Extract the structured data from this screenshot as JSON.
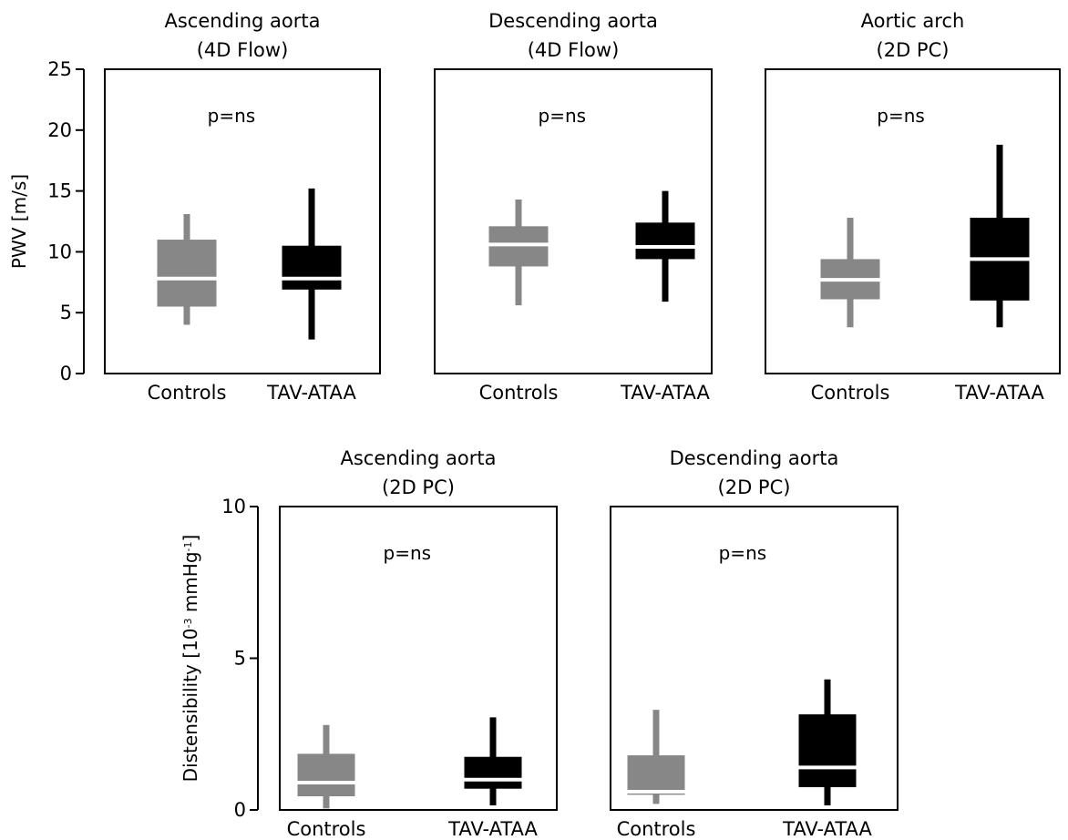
{
  "chart_data": [
    {
      "type": "box",
      "title": [
        "Ascending aorta",
        "(4D Flow)"
      ],
      "ylabel": "PWV [m/s]",
      "ylim": [
        0,
        25
      ],
      "yticks": [
        0,
        5,
        10,
        15,
        20,
        25
      ],
      "categories": [
        "Controls",
        "TAV-ATAA"
      ],
      "annotation": "p=ns",
      "colors": [
        "#878787",
        "#000000"
      ],
      "boxes": [
        {
          "min": 4.0,
          "q1": 5.5,
          "median": 7.8,
          "q3": 11.0,
          "max": 13.1
        },
        {
          "min": 2.8,
          "q1": 6.9,
          "median": 7.8,
          "q3": 10.5,
          "max": 15.2
        }
      ]
    },
    {
      "type": "box",
      "title": [
        "Descending aorta",
        "(4D Flow)"
      ],
      "ylabel": "",
      "ylim": [
        0,
        25
      ],
      "categories": [
        "Controls",
        "TAV-ATAA"
      ],
      "annotation": "p=ns",
      "colors": [
        "#878787",
        "#000000"
      ],
      "boxes": [
        {
          "min": 5.6,
          "q1": 8.8,
          "median": 10.6,
          "q3": 12.1,
          "max": 14.3
        },
        {
          "min": 5.9,
          "q1": 9.4,
          "median": 10.4,
          "q3": 12.4,
          "max": 15.0
        }
      ]
    },
    {
      "type": "box",
      "title": [
        "Aortic arch",
        "(2D PC)"
      ],
      "ylabel": "",
      "ylim": [
        0,
        25
      ],
      "categories": [
        "Controls",
        "TAV-ATAA"
      ],
      "annotation": "p=ns",
      "colors": [
        "#878787",
        "#000000"
      ],
      "boxes": [
        {
          "min": 3.8,
          "q1": 6.1,
          "median": 7.7,
          "q3": 9.4,
          "max": 12.8
        },
        {
          "min": 3.8,
          "q1": 6.0,
          "median": 9.4,
          "q3": 12.8,
          "max": 18.8
        }
      ]
    },
    {
      "type": "box",
      "title": [
        "Ascending aorta",
        "(2D PC)"
      ],
      "ylabel": "Distensibility [10",
      "ylabel_sup": "-3",
      "ylabel_mid": " mmHg",
      "ylabel_sup2": "-1",
      "ylabel_end": "]",
      "ylim": [
        0,
        10
      ],
      "yticks": [
        0,
        5,
        10
      ],
      "categories": [
        "Controls",
        "TAV-ATAA"
      ],
      "annotation": "p=ns",
      "colors": [
        "#878787",
        "#000000"
      ],
      "boxes": [
        {
          "min": 0.05,
          "q1": 0.45,
          "median": 0.9,
          "q3": 1.85,
          "max": 2.8
        },
        {
          "min": 0.15,
          "q1": 0.7,
          "median": 1.0,
          "q3": 1.75,
          "max": 3.05
        }
      ]
    },
    {
      "type": "box",
      "title": [
        "Descending aorta",
        "(2D PC)"
      ],
      "ylabel": "",
      "ylim": [
        0,
        10
      ],
      "categories": [
        "Controls",
        "TAV-ATAA"
      ],
      "annotation": "p=ns",
      "colors": [
        "#878787",
        "#000000"
      ],
      "boxes": [
        {
          "min": 0.2,
          "q1": 0.5,
          "median": 0.6,
          "q3": 1.8,
          "max": 3.3
        },
        {
          "min": 0.15,
          "q1": 0.75,
          "median": 1.4,
          "q3": 3.15,
          "max": 4.3
        }
      ]
    }
  ]
}
